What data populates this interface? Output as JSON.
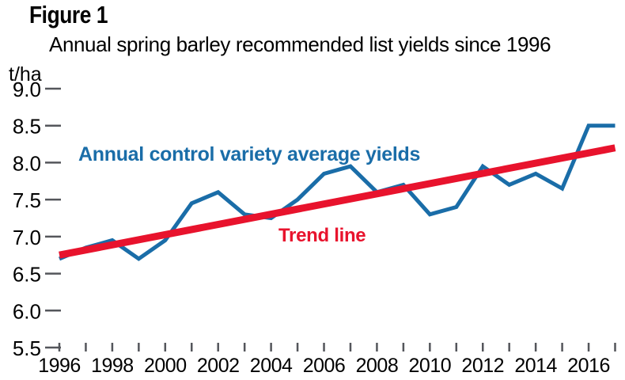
{
  "figure": {
    "label": "Figure 1",
    "subtitle": "Annual spring barley recommended list yields since 1996"
  },
  "colors": {
    "series_blue": "#1a6da8",
    "series_red": "#e8132d",
    "tick": "#54565b",
    "text": "#000000",
    "background": "#ffffff"
  },
  "chart_data": {
    "type": "line",
    "title": "Annual spring barley recommended list yields since 1996",
    "xlabel": "",
    "ylabel": "t/ha",
    "grid": false,
    "legend_position": "inline-annotations",
    "x_axis": {
      "range": [
        1996,
        2017
      ],
      "tick_interval": 1,
      "label_years": [
        1996,
        1998,
        2000,
        2002,
        2004,
        2006,
        2008,
        2010,
        2012,
        2014,
        2016
      ]
    },
    "y_axis": {
      "unit": "t/ha",
      "range": [
        5.5,
        9.0
      ],
      "ticks": [
        9.0,
        8.5,
        8.0,
        7.5,
        7.0,
        6.5,
        6.0,
        5.5
      ]
    },
    "series": [
      {
        "name": "Annual control variety average yields",
        "color": "#1a6da8",
        "x": [
          1996,
          1997,
          1998,
          1999,
          2000,
          2001,
          2002,
          2003,
          2004,
          2005,
          2006,
          2007,
          2008,
          2009,
          2010,
          2011,
          2012,
          2013,
          2014,
          2015,
          2016,
          2017
        ],
        "values": [
          6.7,
          6.85,
          6.95,
          6.7,
          6.95,
          7.45,
          7.6,
          7.3,
          7.25,
          7.5,
          7.85,
          7.95,
          7.6,
          7.7,
          7.3,
          7.4,
          7.95,
          7.7,
          7.85,
          7.65,
          8.5,
          8.5
        ]
      },
      {
        "name": "Trend line",
        "color": "#e8132d",
        "x": [
          1996,
          2017
        ],
        "values": [
          6.75,
          8.2
        ]
      }
    ]
  }
}
